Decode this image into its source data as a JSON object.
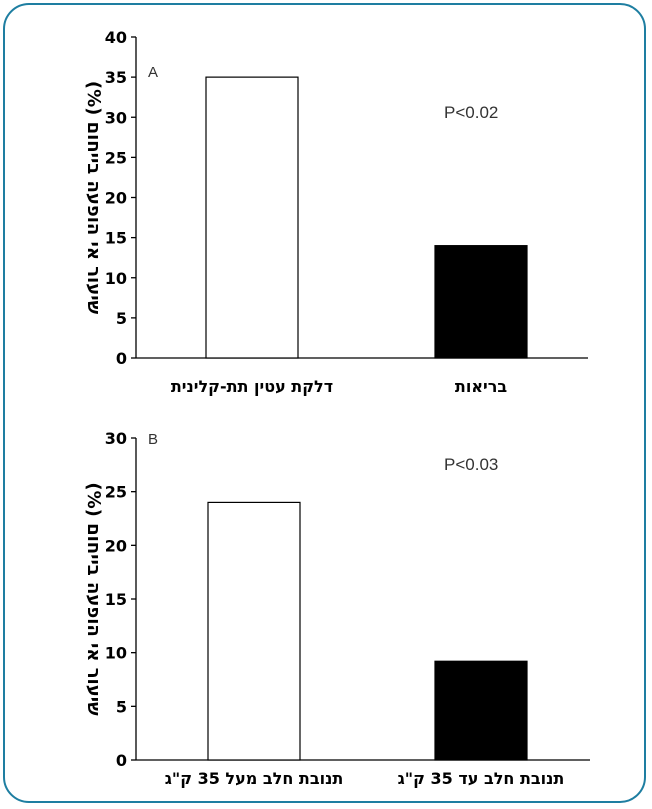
{
  "colors": {
    "frame": "#1e7ea1",
    "bar_outline": "#000000",
    "bar_filled": "#000000",
    "bar_empty": "#ffffff"
  },
  "chart_data": [
    {
      "type": "bar",
      "panel": "A",
      "ylabel": "שיעור אי הופעה בייחום (%)",
      "ylim": [
        0,
        40
      ],
      "yticks": [
        0,
        5,
        10,
        15,
        20,
        25,
        30,
        35,
        40
      ],
      "categories": [
        "דלקת עטין תת-קלינית",
        "בריאות"
      ],
      "values": [
        35,
        14
      ],
      "fills": [
        "white",
        "black"
      ],
      "annotation": "P<0.02"
    },
    {
      "type": "bar",
      "panel": "B",
      "ylabel": "שיעור אי הופעה בייחום (%)",
      "ylim": [
        0,
        30
      ],
      "yticks": [
        0,
        5,
        10,
        15,
        20,
        25,
        30
      ],
      "categories": [
        "תנובת חלב מעל 35 ק\"ג",
        "תנובת חלב עד 35 ק\"ג"
      ],
      "values": [
        24,
        9.2
      ],
      "fills": [
        "white",
        "black"
      ],
      "annotation": "P<0.03"
    }
  ]
}
